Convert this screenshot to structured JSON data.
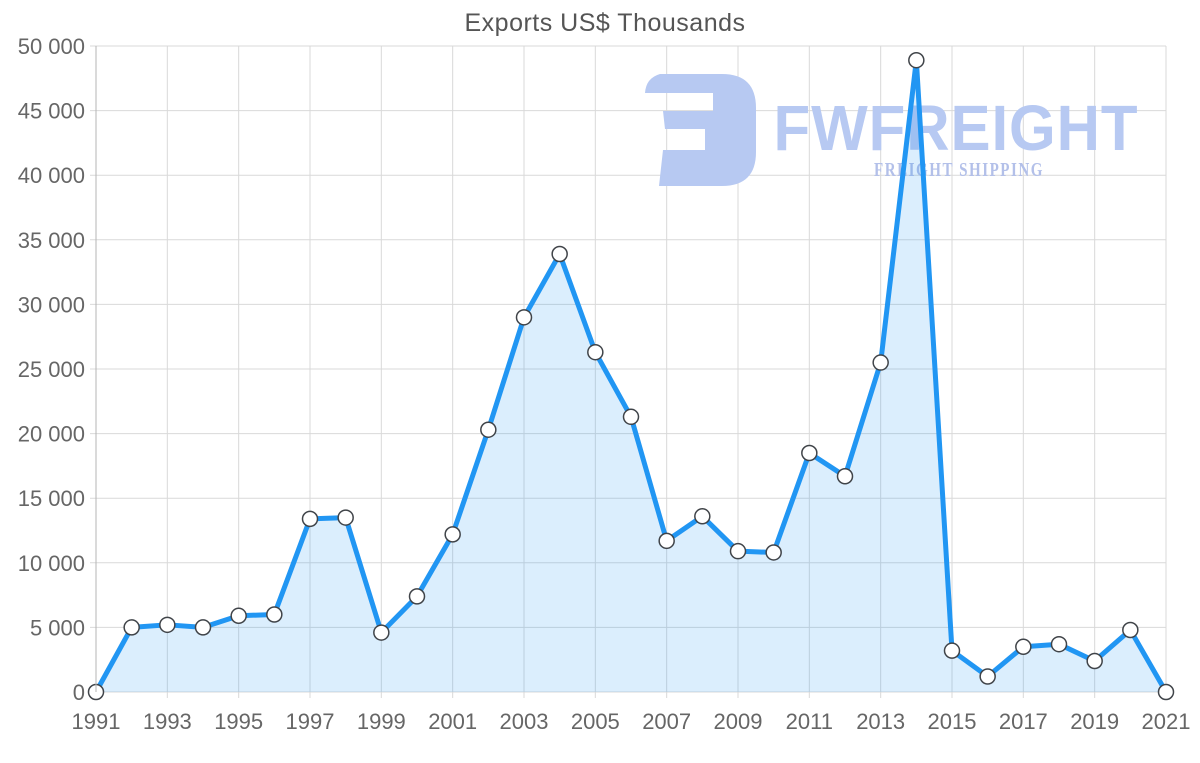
{
  "chart_data": {
    "type": "area",
    "title": "Exports US$ Thousands",
    "xlabel": "",
    "ylabel": "",
    "x": [
      1991,
      1992,
      1993,
      1994,
      1995,
      1996,
      1997,
      1998,
      1999,
      2000,
      2001,
      2002,
      2003,
      2004,
      2005,
      2006,
      2007,
      2008,
      2009,
      2010,
      2011,
      2012,
      2013,
      2014,
      2015,
      2016,
      2017,
      2018,
      2019,
      2020,
      2021
    ],
    "series": [
      {
        "name": "Exports US$ Thousands",
        "values": [
          0,
          5000,
          5200,
          5000,
          5900,
          6000,
          13400,
          13500,
          4600,
          7400,
          12200,
          20300,
          29000,
          33900,
          26300,
          21300,
          11700,
          13600,
          10900,
          10800,
          18500,
          16700,
          25500,
          48900,
          3200,
          1200,
          3500,
          3700,
          2400,
          4800,
          0
        ]
      }
    ],
    "ylim": [
      0,
      50000
    ],
    "y_tick_step": 5000,
    "x_tick_step": 2,
    "grid": true,
    "legend": "none",
    "y_tick_labels": [
      "0",
      "5 000",
      "10 000",
      "15 000",
      "20 000",
      "25 000",
      "30 000",
      "35 000",
      "40 000",
      "45 000",
      "50 000"
    ],
    "x_tick_labels": [
      "1991",
      "1993",
      "1995",
      "1997",
      "1999",
      "2001",
      "2003",
      "2005",
      "2007",
      "2009",
      "2011",
      "2013",
      "2015",
      "2017",
      "2019",
      "2021"
    ]
  },
  "watermark": {
    "brand": "FWFREIGHT",
    "tagline": "FREIGHT SHIPPING"
  },
  "colors": {
    "line": "#2196f3",
    "area_fill": "rgba(33,150,243,0.16)",
    "marker_fill": "#ffffff",
    "marker_stroke": "#404449",
    "grid": "#d9d9d9",
    "axis": "#b5b5b5",
    "tick_text": "#666666",
    "title_text": "#555555",
    "watermark": "#b7c9f2",
    "watermark_tagline": "#b3c0e9"
  }
}
